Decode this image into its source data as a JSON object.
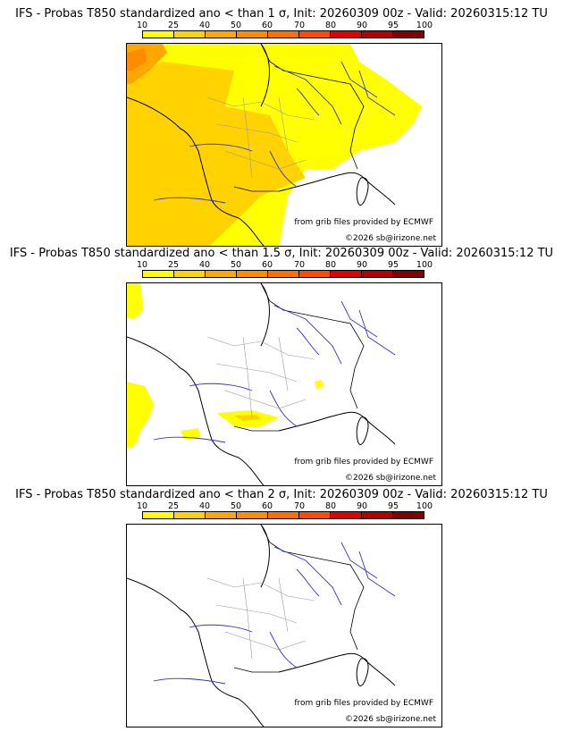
{
  "colors": {
    "scale": [
      "#ffff00",
      "#ffd200",
      "#ffa600",
      "#ff8c00",
      "#ff6e00",
      "#ff4a00",
      "#e00000",
      "#b40000",
      "#820000",
      "#500000"
    ],
    "rivers": "#3333cc",
    "coast": "#000000",
    "borders": "#9a9a9a"
  },
  "colorbar": {
    "ticks": [
      "10",
      "25",
      "40",
      "50",
      "60",
      "70",
      "80",
      "90",
      "95",
      "100"
    ]
  },
  "panels": [
    {
      "title": "IFS - Probas T850  standardized ano < than 1 σ, Init: 20260309 00z - Valid: 20260315:12 TU",
      "credit_ecmwf": "from grib files provided by ECMWF",
      "credit_copy": "©2026 sb@irizone.net"
    },
    {
      "title": "IFS - Probas T850  standardized ano < than 1.5 σ, Init: 20260309 00z - Valid: 20260315:12 TU",
      "credit_ecmwf": "from grib files provided by ECMWF",
      "credit_copy": "©2026 sb@irizone.net"
    },
    {
      "title": "IFS - Probas T850  standardized ano < than 2 σ, Init: 20260309 00z - Valid: 20260315:12 TU",
      "credit_ecmwf": "from grib files provided by ECMWF",
      "credit_copy": "©2026 sb@irizone.net"
    }
  ]
}
